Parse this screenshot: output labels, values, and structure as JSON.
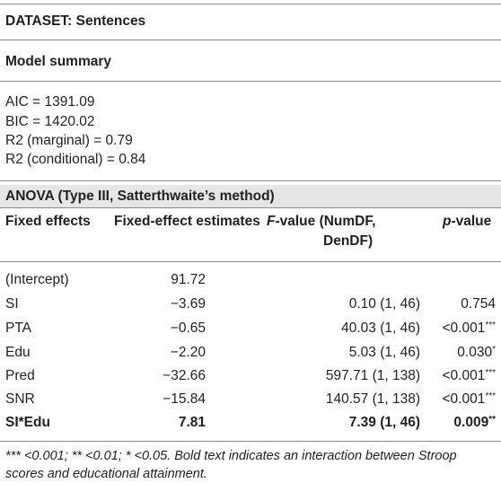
{
  "dataset_title": "DATASET: Sentences",
  "model_summary": {
    "heading": "Model summary",
    "stats": [
      "AIC = 1391.09",
      "BIC = 1420.02",
      "R2 (marginal) = 0.79",
      "R2 (conditional) = 0.84"
    ]
  },
  "anova": {
    "heading": "ANOVA (Type III, Satterthwaite’s method)",
    "columns": {
      "fixed": "Fixed effects",
      "estimates": "Fixed-effect estimates",
      "f_italic": "F",
      "f_rest_line1": "-value (NumDF,",
      "f_line2": "DenDF)",
      "p_italic": "p",
      "p_rest": "-value"
    },
    "rows": [
      {
        "effect": "(Intercept)",
        "estimate": "91.72",
        "f": "",
        "p": "",
        "p_sup": ""
      },
      {
        "effect": "SI",
        "estimate": "−3.69",
        "f": "0.10 (1, 46)",
        "p": "0.754",
        "p_sup": ""
      },
      {
        "effect": "PTA",
        "estimate": "−0.65",
        "f": "40.03 (1, 46)",
        "p": "<0.001",
        "p_sup": "***"
      },
      {
        "effect": "Edu",
        "estimate": "−2.20",
        "f": "5.03 (1, 46)",
        "p": "0.030",
        "p_sup": "*"
      },
      {
        "effect": "Pred",
        "estimate": "−32.66",
        "f": "597.71 (1, 138)",
        "p": "<0.001",
        "p_sup": "***"
      },
      {
        "effect": "SNR",
        "estimate": "−15.84",
        "f": "140.57 (1, 138)",
        "p": "<0.001",
        "p_sup": "***"
      },
      {
        "effect": "SI*Edu",
        "estimate": "7.81",
        "f": "7.39 (1, 46)",
        "p": "0.009",
        "p_sup": "**"
      }
    ]
  },
  "footnote": "*** <0.001; ** <0.01; * <0.05. Bold text indicates an interaction between Stroop scores and educational attainment."
}
